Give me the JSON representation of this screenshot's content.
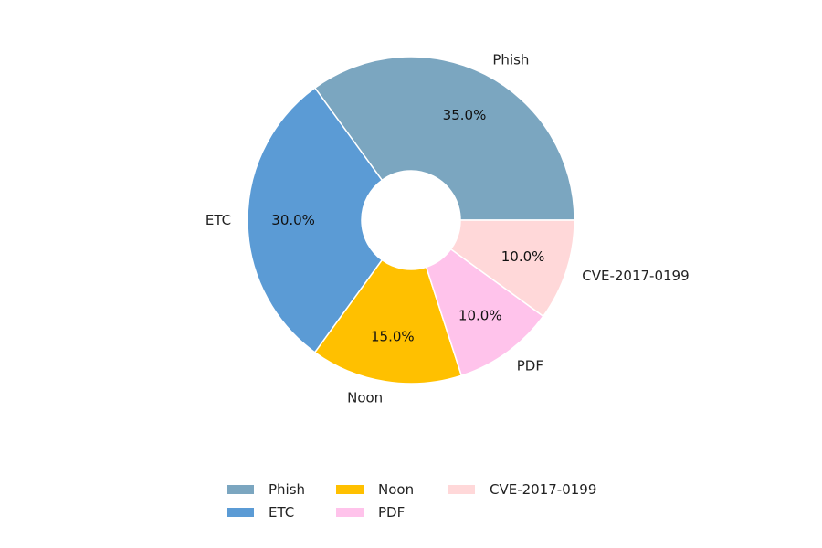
{
  "chart_data": {
    "type": "pie",
    "donut": true,
    "title": "",
    "start_angle_deg": 0,
    "direction": "counterclockwise",
    "slices": [
      {
        "label": "Phish",
        "value": 35.0,
        "pct_text": "35.0%",
        "color": "#7BA6C0"
      },
      {
        "label": "ETC",
        "value": 30.0,
        "pct_text": "30.0%",
        "color": "#5B9BD5"
      },
      {
        "label": "Noon",
        "value": 15.0,
        "pct_text": "15.0%",
        "color": "#FFC000"
      },
      {
        "label": "PDF",
        "value": 10.0,
        "pct_text": "10.0%",
        "color": "#FFC3EB"
      },
      {
        "label": "CVE-2017-0199",
        "value": 10.0,
        "pct_text": "10.0%",
        "color": "#FFD8D9"
      }
    ],
    "legend": {
      "placement": "bottom-center",
      "columns": 3,
      "entries": [
        "Phish",
        "ETC",
        "Noon",
        "PDF",
        "CVE-2017-0199"
      ]
    }
  }
}
